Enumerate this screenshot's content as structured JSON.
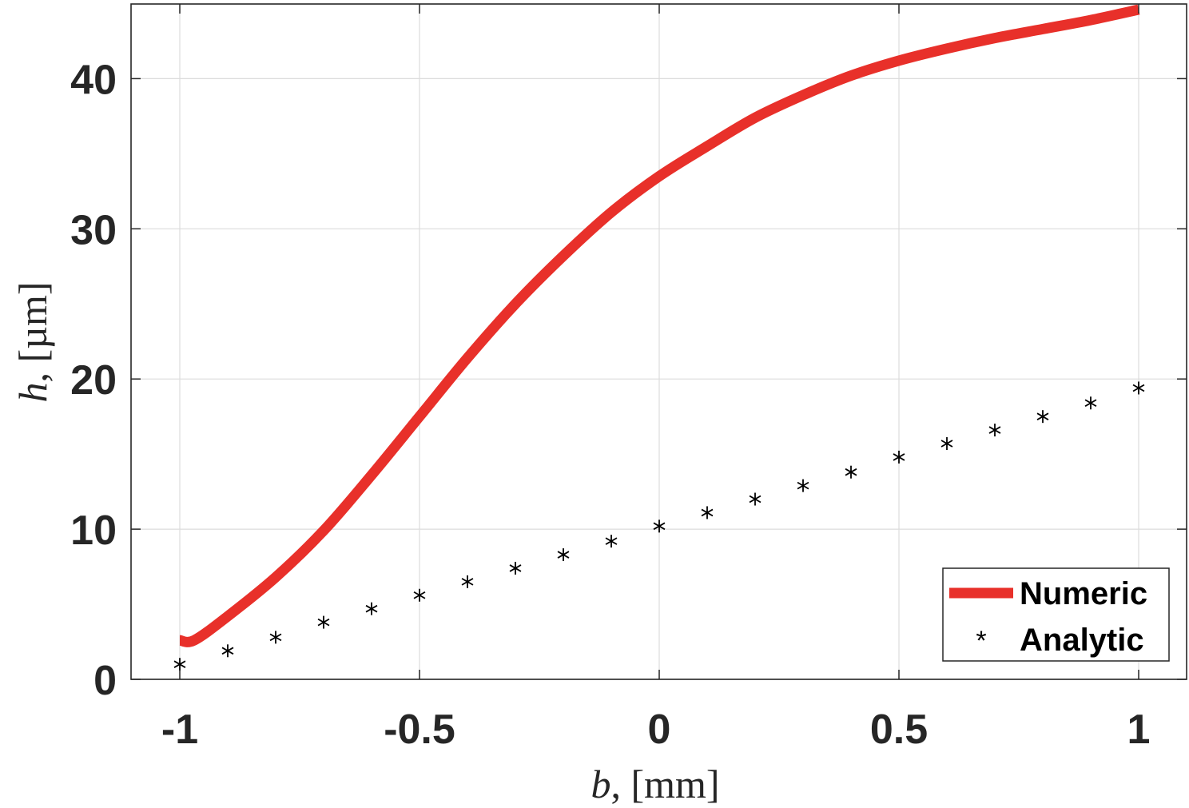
{
  "chart_data": {
    "type": "line",
    "title": "",
    "xlabel": {
      "var": "b",
      "unit": "[mm]"
    },
    "ylabel": {
      "var": "h",
      "unit": "[µm]"
    },
    "xlim": [
      -1,
      1
    ],
    "ylim": [
      0,
      45
    ],
    "grid": true,
    "legend_position": "bottom-right",
    "x_ticks": [
      {
        "value": -1,
        "label": "-1"
      },
      {
        "value": -0.5,
        "label": "-0.5"
      },
      {
        "value": 0,
        "label": "0"
      },
      {
        "value": 0.5,
        "label": "0.5"
      },
      {
        "value": 1,
        "label": "1"
      }
    ],
    "y_ticks": [
      {
        "value": 0,
        "label": "0"
      },
      {
        "value": 10,
        "label": "10"
      },
      {
        "value": 20,
        "label": "20"
      },
      {
        "value": 30,
        "label": "30"
      },
      {
        "value": 40,
        "label": "40"
      }
    ],
    "series": [
      {
        "name": "Numeric",
        "style": "line",
        "color": "#e8302a",
        "x": [
          -1.0,
          -0.97,
          -0.9,
          -0.8,
          -0.7,
          -0.6,
          -0.5,
          -0.4,
          -0.3,
          -0.2,
          -0.1,
          0.0,
          0.1,
          0.2,
          0.3,
          0.4,
          0.5,
          0.6,
          0.7,
          0.8,
          0.9,
          1.0
        ],
        "y": [
          2.6,
          2.6,
          4.2,
          6.8,
          9.9,
          13.6,
          17.5,
          21.4,
          25.0,
          28.2,
          31.1,
          33.5,
          35.5,
          37.4,
          38.9,
          40.2,
          41.2,
          42.0,
          42.7,
          43.3,
          43.9,
          44.6
        ]
      },
      {
        "name": "Analytic",
        "style": "marker",
        "marker": "*",
        "color": "#000000",
        "x": [
          -1.0,
          -0.9,
          -0.8,
          -0.7,
          -0.6,
          -0.5,
          -0.4,
          -0.3,
          -0.2,
          -0.1,
          0.0,
          0.1,
          0.2,
          0.3,
          0.4,
          0.5,
          0.6,
          0.7,
          0.8,
          0.9,
          1.0
        ],
        "y": [
          1.0,
          1.9,
          2.8,
          3.8,
          4.7,
          5.6,
          6.5,
          7.4,
          8.3,
          9.2,
          10.2,
          11.1,
          12.0,
          12.9,
          13.8,
          14.8,
          15.7,
          16.6,
          17.5,
          18.4,
          19.4
        ]
      }
    ]
  }
}
